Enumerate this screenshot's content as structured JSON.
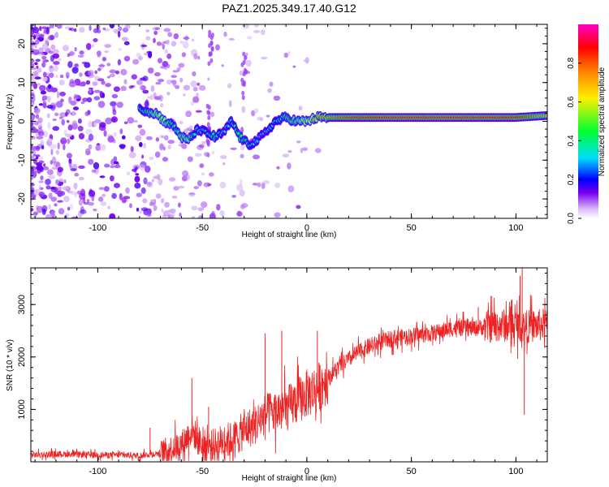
{
  "page": {
    "title": "PAZ1.2025.349.17.40.G12"
  },
  "chart_data": [
    {
      "type": "heatmap",
      "title": "PAZ1.2025.349.17.40.G12",
      "xlabel": "Height of straight line (km)",
      "ylabel": "Frequency (Hz)",
      "xlim": [
        -132,
        115
      ],
      "ylim": [
        -25,
        25
      ],
      "x_ticks": [
        -100,
        -50,
        0,
        50,
        100
      ],
      "x_tick_labels": [
        "-100",
        "-50",
        "0",
        "50",
        "100"
      ],
      "y_ticks": [
        -20,
        -10,
        0,
        10,
        20
      ],
      "y_tick_labels": [
        "-20",
        "-10",
        "0",
        "10",
        "20"
      ],
      "colorbar": {
        "label": "Normalized spectral amplitude",
        "range": [
          0,
          1
        ],
        "ticks": [
          0.0,
          0.2,
          0.4,
          0.6,
          0.8
        ],
        "tick_labels": [
          "0.0",
          "0.2",
          "0.4",
          "0.6",
          "0.8"
        ],
        "colors": [
          "#ffffff",
          "#d8b8f8",
          "#7a00ee",
          "#0000ff",
          "#00ddff",
          "#00ff30",
          "#ffee00",
          "#ff8000",
          "#ff0000",
          "#ff00c8"
        ]
      },
      "ridge": {
        "description_values": "dominant frequency (Hz) vs height (km)",
        "x": [
          -78,
          -72,
          -68,
          -64,
          -60,
          -57,
          -52,
          -48,
          -44,
          -40,
          -36,
          -32,
          -28,
          -24,
          -20,
          -15,
          -10,
          -5,
          0,
          5,
          10,
          20,
          40,
          60,
          80,
          100,
          115
        ],
        "y": [
          3,
          2,
          0,
          -1,
          -4,
          -5,
          -2,
          -3,
          -4,
          -3,
          0,
          -4,
          -6,
          -5,
          -3,
          0,
          1,
          0,
          0,
          1,
          1,
          1,
          1,
          1,
          1,
          1,
          1.5
        ],
        "amplitude": [
          0.4,
          0.55,
          0.55,
          0.4,
          0.5,
          0.55,
          0.3,
          0.35,
          0.45,
          0.3,
          0.35,
          0.45,
          0.4,
          0.3,
          0.3,
          0.35,
          0.45,
          0.5,
          0.6,
          0.7,
          0.75,
          0.85,
          0.9,
          0.9,
          0.9,
          0.88,
          0.7
        ]
      }
    },
    {
      "type": "line",
      "xlabel": "Height of straight line (km)",
      "ylabel": "SNR (10 * v/v)",
      "xlim": [
        -132,
        115
      ],
      "ylim": [
        0,
        3700
      ],
      "x_ticks": [
        -100,
        -50,
        0,
        50,
        100
      ],
      "x_tick_labels": [
        "-100",
        "-50",
        "0",
        "50",
        "100"
      ],
      "y_ticks": [
        1000,
        2000,
        3000
      ],
      "y_tick_labels": [
        "1000",
        "2000",
        "3000"
      ],
      "color": "#ee2222",
      "series": [
        {
          "name": "SNR",
          "x": [
            -132,
            -120,
            -110,
            -100,
            -90,
            -80,
            -70,
            -65,
            -60,
            -55,
            -50,
            -45,
            -40,
            -35,
            -30,
            -25,
            -20,
            -15,
            -10,
            -5,
            0,
            5,
            10,
            15,
            20,
            25,
            30,
            40,
            50,
            60,
            70,
            80,
            90,
            95,
            100,
            105,
            110,
            115
          ],
          "y": [
            130,
            150,
            140,
            130,
            130,
            120,
            170,
            250,
            330,
            600,
            300,
            300,
            400,
            430,
            600,
            700,
            900,
            950,
            1000,
            1150,
            1300,
            1400,
            1600,
            1800,
            1950,
            2100,
            2200,
            2350,
            2400,
            2450,
            2550,
            2550,
            2600,
            2600,
            2600,
            2580,
            2600,
            2620
          ]
        }
      ],
      "spikes": {
        "x": [
          -75,
          -55,
          -47,
          -20,
          -12,
          5,
          82,
          98,
          102,
          103,
          104
        ],
        "y": [
          650,
          1600,
          1050,
          2450,
          2500,
          2500,
          2950,
          3100,
          3550,
          3700,
          900
        ]
      }
    }
  ]
}
